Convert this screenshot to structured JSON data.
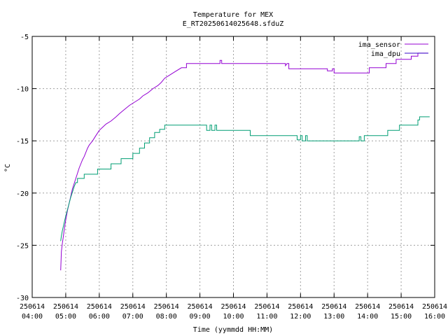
{
  "chart_data": {
    "type": "line",
    "title": "Temperature for MEX",
    "subtitle": "E_RT20250614025648.sfduZ",
    "xlabel": "Time (yymmdd HH:MM)",
    "ylabel": "°C",
    "xlim": [
      4,
      16
    ],
    "ylim": [
      -30,
      -5
    ],
    "grid": true,
    "legend_position": "top-right",
    "x_ticks": [
      {
        "v": 4,
        "d": "250614",
        "t": "04:00"
      },
      {
        "v": 5,
        "d": "250614",
        "t": "05:00"
      },
      {
        "v": 6,
        "d": "250614",
        "t": "06:00"
      },
      {
        "v": 7,
        "d": "250614",
        "t": "07:00"
      },
      {
        "v": 8,
        "d": "250614",
        "t": "08:00"
      },
      {
        "v": 9,
        "d": "250614",
        "t": "09:00"
      },
      {
        "v": 10,
        "d": "250614",
        "t": "10:00"
      },
      {
        "v": 11,
        "d": "250614",
        "t": "11:00"
      },
      {
        "v": 12,
        "d": "250614",
        "t": "12:00"
      },
      {
        "v": 13,
        "d": "250614",
        "t": "13:00"
      },
      {
        "v": 14,
        "d": "250614",
        "t": "14:00"
      },
      {
        "v": 15,
        "d": "250614",
        "t": "15:00"
      },
      {
        "v": 16,
        "d": "250614",
        "t": "16:00"
      }
    ],
    "y_ticks": [
      {
        "v": -5,
        "label": "-5"
      },
      {
        "v": -10,
        "label": "-10"
      },
      {
        "v": -15,
        "label": "-15"
      },
      {
        "v": -20,
        "label": "-20"
      },
      {
        "v": -25,
        "label": "-25"
      },
      {
        "v": -30,
        "label": "-30"
      }
    ],
    "series": [
      {
        "name": "ima_sensor",
        "color": "#9400d3",
        "points": [
          [
            4.85,
            -27.4
          ],
          [
            4.87,
            -25.6
          ],
          [
            4.9,
            -24.8
          ],
          [
            4.93,
            -24.1
          ],
          [
            4.96,
            -23.4
          ],
          [
            5.0,
            -22.6
          ],
          [
            5.05,
            -21.7
          ],
          [
            5.1,
            -21.0
          ],
          [
            5.15,
            -20.3
          ],
          [
            5.2,
            -19.6
          ],
          [
            5.25,
            -19.1
          ],
          [
            5.3,
            -18.6
          ],
          [
            5.35,
            -18.1
          ],
          [
            5.4,
            -17.6
          ],
          [
            5.45,
            -17.2
          ],
          [
            5.5,
            -16.8
          ],
          [
            5.55,
            -16.5
          ],
          [
            5.6,
            -16.1
          ],
          [
            5.65,
            -15.7
          ],
          [
            5.7,
            -15.4
          ],
          [
            5.8,
            -15.0
          ],
          [
            5.9,
            -14.5
          ],
          [
            6.0,
            -14.0
          ],
          [
            6.1,
            -13.7
          ],
          [
            6.2,
            -13.4
          ],
          [
            6.35,
            -13.1
          ],
          [
            6.5,
            -12.7
          ],
          [
            6.6,
            -12.4
          ],
          [
            6.75,
            -12.0
          ],
          [
            6.9,
            -11.6
          ],
          [
            7.05,
            -11.3
          ],
          [
            7.2,
            -11.0
          ],
          [
            7.3,
            -10.7
          ],
          [
            7.45,
            -10.4
          ],
          [
            7.6,
            -10.0
          ],
          [
            7.75,
            -9.7
          ],
          [
            7.85,
            -9.4
          ],
          [
            7.95,
            -9.0
          ],
          [
            8.1,
            -8.7
          ],
          [
            8.25,
            -8.4
          ],
          [
            8.45,
            -8.0
          ],
          [
            8.6,
            -8.0
          ],
          [
            8.6,
            -7.6
          ],
          [
            9.6,
            -7.6
          ],
          [
            9.6,
            -7.3
          ],
          [
            9.65,
            -7.3
          ],
          [
            9.65,
            -7.6
          ],
          [
            11.55,
            -7.6
          ],
          [
            11.55,
            -7.8
          ],
          [
            11.6,
            -7.6
          ],
          [
            11.65,
            -7.6
          ],
          [
            11.65,
            -8.1
          ],
          [
            12.8,
            -8.1
          ],
          [
            12.8,
            -8.3
          ],
          [
            12.95,
            -8.3
          ],
          [
            12.95,
            -8.1
          ],
          [
            13.0,
            -8.1
          ],
          [
            13.0,
            -8.5
          ],
          [
            14.05,
            -8.5
          ],
          [
            14.05,
            -8.0
          ],
          [
            14.55,
            -8.0
          ],
          [
            14.55,
            -7.6
          ],
          [
            14.85,
            -7.6
          ],
          [
            14.85,
            -7.2
          ],
          [
            15.3,
            -7.2
          ],
          [
            15.3,
            -6.9
          ],
          [
            15.5,
            -6.9
          ],
          [
            15.5,
            -6.6
          ],
          [
            15.8,
            -6.6
          ]
        ]
      },
      {
        "name": "ima_dpu",
        "color": "#009e73",
        "points": [
          [
            4.85,
            -24.6
          ],
          [
            4.87,
            -24.1
          ],
          [
            4.9,
            -23.6
          ],
          [
            4.95,
            -22.9
          ],
          [
            5.0,
            -22.2
          ],
          [
            5.05,
            -21.6
          ],
          [
            5.1,
            -21.0
          ],
          [
            5.15,
            -20.4
          ],
          [
            5.2,
            -19.9
          ],
          [
            5.25,
            -19.4
          ],
          [
            5.3,
            -19.0
          ],
          [
            5.35,
            -19.0
          ],
          [
            5.35,
            -18.6
          ],
          [
            5.55,
            -18.6
          ],
          [
            5.55,
            -18.2
          ],
          [
            5.95,
            -18.2
          ],
          [
            5.95,
            -17.7
          ],
          [
            6.35,
            -17.7
          ],
          [
            6.35,
            -17.2
          ],
          [
            6.65,
            -17.2
          ],
          [
            6.65,
            -16.7
          ],
          [
            7.0,
            -16.7
          ],
          [
            7.0,
            -16.2
          ],
          [
            7.2,
            -16.2
          ],
          [
            7.2,
            -15.7
          ],
          [
            7.35,
            -15.7
          ],
          [
            7.35,
            -15.2
          ],
          [
            7.5,
            -15.2
          ],
          [
            7.5,
            -14.7
          ],
          [
            7.65,
            -14.7
          ],
          [
            7.65,
            -14.2
          ],
          [
            7.8,
            -14.2
          ],
          [
            7.8,
            -13.9
          ],
          [
            7.95,
            -13.9
          ],
          [
            7.95,
            -13.5
          ],
          [
            9.2,
            -13.5
          ],
          [
            9.2,
            -14.0
          ],
          [
            9.3,
            -14.0
          ],
          [
            9.3,
            -13.5
          ],
          [
            9.35,
            -13.5
          ],
          [
            9.35,
            -14.0
          ],
          [
            9.45,
            -14.0
          ],
          [
            9.45,
            -13.5
          ],
          [
            9.5,
            -13.5
          ],
          [
            9.5,
            -14.0
          ],
          [
            10.5,
            -14.0
          ],
          [
            10.5,
            -14.5
          ],
          [
            11.9,
            -14.5
          ],
          [
            11.9,
            -14.9
          ],
          [
            12.0,
            -14.9
          ],
          [
            12.0,
            -14.5
          ],
          [
            12.05,
            -14.5
          ],
          [
            12.05,
            -15.0
          ],
          [
            12.15,
            -15.0
          ],
          [
            12.15,
            -14.5
          ],
          [
            12.2,
            -14.5
          ],
          [
            12.2,
            -15.0
          ],
          [
            13.75,
            -15.0
          ],
          [
            13.75,
            -14.6
          ],
          [
            13.8,
            -14.6
          ],
          [
            13.8,
            -15.0
          ],
          [
            13.9,
            -15.0
          ],
          [
            13.9,
            -14.5
          ],
          [
            14.6,
            -14.5
          ],
          [
            14.6,
            -14.0
          ],
          [
            14.95,
            -14.0
          ],
          [
            14.95,
            -13.5
          ],
          [
            15.5,
            -13.5
          ],
          [
            15.5,
            -13.0
          ],
          [
            15.55,
            -13.0
          ],
          [
            15.55,
            -12.7
          ],
          [
            15.85,
            -12.7
          ]
        ]
      }
    ]
  }
}
